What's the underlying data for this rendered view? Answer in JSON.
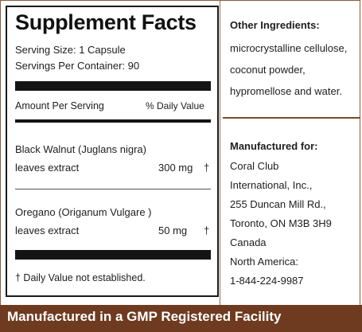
{
  "supplement_facts": {
    "title": "Supplement Facts",
    "serving_size": "Serving Size: 1 Capsule",
    "servings_per_container": "Servings Per Container: 90",
    "amount_header": "Amount Per Serving",
    "dv_header": "% Daily Value",
    "ingredients": [
      {
        "name_line1": "Black Walnut (Juglans nigra)",
        "name_line2": "leaves extract",
        "amount": "300 mg",
        "dv": "†"
      },
      {
        "name_line1": "Oregano (Origanum Vulgare )",
        "name_line2": "leaves extract",
        "amount": "50 mg",
        "dv": "†"
      }
    ],
    "footnote": "† Daily Value not established."
  },
  "other_ingredients": {
    "heading": "Other Ingredients:",
    "lines": [
      "microcrystalline cellulose,",
      "coconut powder,",
      "hypromellose and water."
    ]
  },
  "manufacturer": {
    "heading": "Manufactured for:",
    "lines": [
      "Coral Club",
      "International, Inc.,",
      "255 Duncan Mill Rd.,",
      "Toronto, ON  M3B 3H9",
      "Canada",
      "North America:",
      "1-844-224-9987"
    ]
  },
  "footer": {
    "text": "Manufactured in a GMP Registered Facility"
  },
  "colors": {
    "brown": "#6f3b20",
    "text": "#1a1a1a"
  }
}
